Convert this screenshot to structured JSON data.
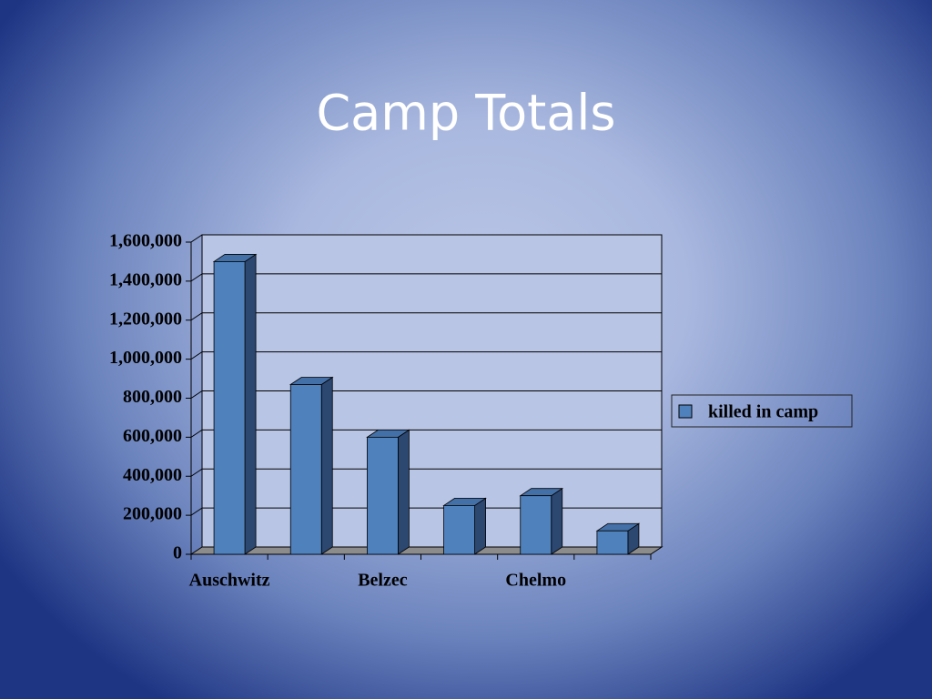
{
  "chart_data": {
    "type": "bar3d",
    "title": "Camp Totals",
    "categories": [
      "Auschwitz",
      null,
      "Belzec",
      null,
      "Chelmo",
      null
    ],
    "series": [
      {
        "name": "killed in camp",
        "color": "#4f81bd",
        "values": [
          1500000,
          870000,
          600000,
          250000,
          300000,
          120000
        ]
      }
    ],
    "ylim": [
      0,
      1600000
    ],
    "yticks": [
      0,
      {
        "value": 200000,
        "label": "200,000"
      },
      {
        "value": 400000,
        "label": "400,000"
      },
      {
        "value": 600000,
        "label": "600,000"
      },
      {
        "value": 800000,
        "label": "800,000"
      },
      {
        "value": 1000000,
        "label": "1,000,000"
      },
      {
        "value": 1200000,
        "label": "1,200,000"
      },
      {
        "value": 1400000,
        "label": "1,400,000"
      },
      {
        "value": 1600000,
        "label": "1,600,000"
      }
    ],
    "grid": true,
    "legend": "right"
  }
}
